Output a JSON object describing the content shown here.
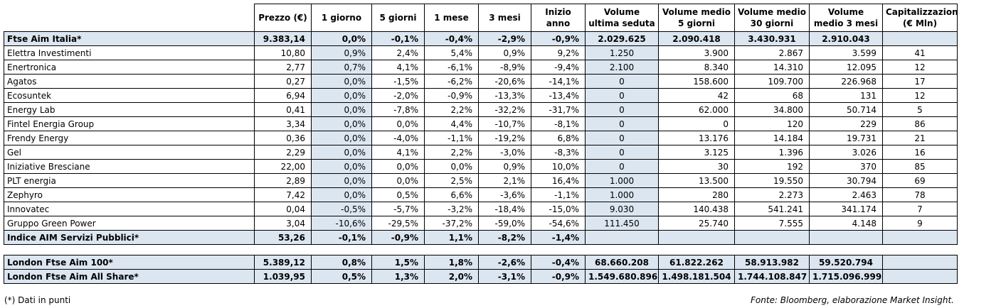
{
  "table": {
    "columns": [
      "Prezzo (€)",
      "1 giorno",
      "5 giorni",
      "1 mese",
      "3 mesi",
      "Inizio anno",
      "Volume ultima seduta",
      "Volume medio 5 giorni",
      "Volume medio 30 giorni",
      "Volume medio 3 mesi",
      "Capitalizzazione (€ Mln)"
    ],
    "summary": [
      [
        "Ftse Aim Italia*",
        "9.383,14",
        "0,0%",
        "-0,1%",
        "-0,4%",
        "-2,9%",
        "-0,9%",
        "2.029.625",
        "2.090.418",
        "3.430.931",
        "2.910.043"
      ]
    ],
    "stocks": [
      [
        "Elettra Investimenti",
        "10,80",
        "0,9%",
        "2,4%",
        "5,4%",
        "0,9%",
        "9,2%",
        "1.250",
        "3.900",
        "2.867",
        "3.599",
        "41"
      ],
      [
        "Enertronica",
        "2,77",
        "0,7%",
        "4,1%",
        "-6,1%",
        "-8,9%",
        "-9,4%",
        "2.100",
        "8.340",
        "14.310",
        "12.095",
        "12"
      ],
      [
        "Agatos",
        "0,27",
        "0,0%",
        "-1,5%",
        "-6,2%",
        "-20,6%",
        "-14,1%",
        "0",
        "158.600",
        "109.700",
        "226.968",
        "17"
      ],
      [
        "Ecosuntek",
        "6,94",
        "0,0%",
        "-2,0%",
        "-0,9%",
        "-13,3%",
        "-13,4%",
        "0",
        "42",
        "68",
        "131",
        "12"
      ],
      [
        "Energy Lab",
        "0,41",
        "0,0%",
        "-7,8%",
        "2,2%",
        "-32,2%",
        "-31,7%",
        "0",
        "62.000",
        "34.800",
        "50.714",
        "5"
      ],
      [
        "Fintel Energia Group",
        "3,34",
        "0,0%",
        "0,0%",
        "4,4%",
        "-10,7%",
        "-8,1%",
        "0",
        "0",
        "120",
        "229",
        "86"
      ],
      [
        "Frendy Energy",
        "0,36",
        "0,0%",
        "-4,0%",
        "-1,1%",
        "-19,2%",
        "6,8%",
        "0",
        "13.176",
        "14.184",
        "19.731",
        "21"
      ],
      [
        "Gel",
        "2,29",
        "0,0%",
        "4,1%",
        "2,2%",
        "-3,0%",
        "-8,3%",
        "0",
        "3.125",
        "1.396",
        "3.026",
        "16"
      ],
      [
        "Iniziative Bresciane",
        "22,00",
        "0,0%",
        "0,0%",
        "0,0%",
        "0,9%",
        "10,0%",
        "0",
        "30",
        "192",
        "370",
        "85"
      ],
      [
        "PLT energia",
        "2,89",
        "0,0%",
        "0,0%",
        "2,5%",
        "2,1%",
        "16,4%",
        "1.000",
        "13.500",
        "19.550",
        "30.794",
        "69"
      ],
      [
        "Zephyro",
        "7,42",
        "0,0%",
        "0,5%",
        "6,6%",
        "-3,6%",
        "-1,1%",
        "1.000",
        "280",
        "2.273",
        "2.463",
        "78"
      ],
      [
        "Innovatec",
        "0,04",
        "-0,5%",
        "-5,7%",
        "-3,2%",
        "-18,4%",
        "-15,0%",
        "9.030",
        "140.438",
        "541.241",
        "341.174",
        "7"
      ],
      [
        "Gruppo Green Power",
        "3,04",
        "-10,6%",
        "-29,5%",
        "-37,2%",
        "-59,0%",
        "-54,6%",
        "111.450",
        "25.740",
        "7.555",
        "4.148",
        "9"
      ]
    ],
    "index": [
      [
        "Indice AIM Servizi Pubblici*",
        "53,26",
        "-0,1%",
        "-0,9%",
        "1,1%",
        "-8,2%",
        "-1,4%"
      ]
    ],
    "london": [
      [
        "London Ftse Aim 100*",
        "5.389,12",
        "0,8%",
        "1,5%",
        "1,8%",
        "-2,6%",
        "-0,4%",
        "68.660.208",
        "61.822.262",
        "58.913.982",
        "59.520.794"
      ],
      [
        "London Ftse Aim All Share*",
        "1.039,95",
        "0,5%",
        "1,3%",
        "2,0%",
        "-3,1%",
        "-0,9%",
        "1.549.680.896",
        "1.498.181.504",
        "1.744.108.847",
        "1.715.096.999"
      ]
    ]
  },
  "footer": {
    "note": "(*) Dati in punti",
    "source": "Fonte: Bloomberg, elaborazione Market Insight."
  }
}
